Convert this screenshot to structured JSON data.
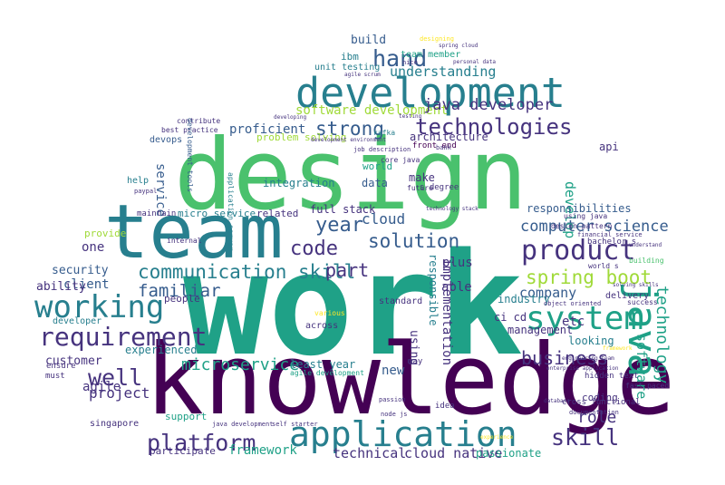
{
  "colors": {
    "background": "#ffffff",
    "palette": [
      "#440154",
      "#46337e",
      "#365c8d",
      "#277f8e",
      "#1fa187",
      "#4ac16d",
      "#a0da39",
      "#fde725"
    ]
  },
  "words": [
    {
      "t": "work",
      "c": "#1fa187"
    },
    {
      "t": "design",
      "c": "#4ac16d"
    },
    {
      "t": "knowledge",
      "c": "#440154"
    },
    {
      "t": "team",
      "c": "#277f8e"
    },
    {
      "t": "development",
      "c": "#277f8e"
    },
    {
      "t": "application",
      "c": "#277f8e"
    },
    {
      "t": "java",
      "c": "#1fa187"
    },
    {
      "t": "working",
      "c": "#277f8e"
    },
    {
      "t": "system",
      "c": "#1fa187"
    },
    {
      "t": "requirement",
      "c": "#46337e"
    },
    {
      "t": "technologies",
      "c": "#46337e"
    },
    {
      "t": "product",
      "c": "#46337e"
    },
    {
      "t": "communication skill",
      "c": "#277f8e"
    },
    {
      "t": "platform",
      "c": "#46337e"
    },
    {
      "t": "spring boot",
      "c": "#a0da39"
    },
    {
      "t": "skill",
      "c": "#46337e"
    },
    {
      "t": "well",
      "c": "#46337e"
    },
    {
      "t": "code",
      "c": "#46337e"
    },
    {
      "t": "solution",
      "c": "#365c8d"
    },
    {
      "t": "strong",
      "c": "#365c8d"
    },
    {
      "t": "hand",
      "c": "#365c8d"
    },
    {
      "t": "year",
      "c": "#365c8d"
    },
    {
      "t": "part",
      "c": "#46337e"
    },
    {
      "t": "business",
      "c": "#46337e"
    },
    {
      "t": "microservice",
      "c": "#1fa187"
    },
    {
      "t": "technology",
      "c": "#1fa187"
    },
    {
      "t": "software development",
      "c": "#a0da39"
    },
    {
      "t": "computer science",
      "c": "#365c8d"
    },
    {
      "t": "project",
      "c": "#46337e"
    },
    {
      "t": "familiar",
      "c": "#365c8d"
    },
    {
      "t": "java developer",
      "c": "#46337e"
    },
    {
      "t": "understanding",
      "c": "#277f8e"
    },
    {
      "t": "cloud",
      "c": "#365c8d"
    },
    {
      "t": "framework",
      "c": "#1fa187"
    },
    {
      "t": "technical",
      "c": "#46337e"
    },
    {
      "t": "cloud native",
      "c": "#46337e"
    },
    {
      "t": "software",
      "c": "#1fa187"
    },
    {
      "t": "company",
      "c": "#365c8d"
    },
    {
      "t": "role",
      "c": "#46337e"
    },
    {
      "t": "build",
      "c": "#365c8d"
    },
    {
      "t": "service",
      "c": "#365c8d"
    },
    {
      "t": "customer",
      "c": "#46337e"
    },
    {
      "t": "client",
      "c": "#365c8d"
    },
    {
      "t": "security",
      "c": "#365c8d"
    },
    {
      "t": "ability",
      "c": "#46337e"
    },
    {
      "t": "agile",
      "c": "#46337e"
    },
    {
      "t": "develop",
      "c": "#1fa187"
    },
    {
      "t": "implementation",
      "c": "#46337e"
    },
    {
      "t": "responsibilities",
      "c": "#365c8d"
    },
    {
      "t": "full stack",
      "c": "#46337e"
    },
    {
      "t": "integration",
      "c": "#277f8e"
    },
    {
      "t": "proficient",
      "c": "#365c8d"
    },
    {
      "t": "problem solving",
      "c": "#a0da39"
    },
    {
      "t": "architecture",
      "c": "#46337e"
    },
    {
      "t": "front end",
      "c": "#440154"
    },
    {
      "t": "experienced",
      "c": "#277f8e"
    },
    {
      "t": "unit testing",
      "c": "#277f8e"
    },
    {
      "t": "team member",
      "c": "#1fa187"
    },
    {
      "t": "ibm",
      "c": "#277f8e"
    },
    {
      "t": "plus",
      "c": "#46337e"
    },
    {
      "t": "able",
      "c": "#46337e"
    },
    {
      "t": "looking",
      "c": "#277f8e"
    },
    {
      "t": "management",
      "c": "#46337e"
    },
    {
      "t": "etc",
      "c": "#46337e"
    },
    {
      "t": "industry",
      "c": "#277f8e"
    },
    {
      "t": "new",
      "c": "#365c8d"
    },
    {
      "t": "standard",
      "c": "#46337e"
    },
    {
      "t": "using",
      "c": "#46337e"
    },
    {
      "t": "responsible",
      "c": "#277f8e"
    },
    {
      "t": "one",
      "c": "#46337e"
    },
    {
      "t": "provide",
      "c": "#a0da39"
    },
    {
      "t": "developer",
      "c": "#277f8e"
    },
    {
      "t": "people",
      "c": "#46337e"
    },
    {
      "t": "related",
      "c": "#46337e"
    },
    {
      "t": "micro service",
      "c": "#277f8e"
    },
    {
      "t": "least year",
      "c": "#277f8e"
    },
    {
      "t": "agile development",
      "c": "#1fa187"
    },
    {
      "t": "data",
      "c": "#365c8d"
    },
    {
      "t": "make",
      "c": "#46337e"
    },
    {
      "t": "world",
      "c": "#1fa187"
    },
    {
      "t": "coding",
      "c": "#46337e"
    },
    {
      "t": "delivery",
      "c": "#46337e"
    },
    {
      "t": "support",
      "c": "#1fa187"
    },
    {
      "t": "singapore",
      "c": "#46337e"
    },
    {
      "t": "participate",
      "c": "#46337e"
    },
    {
      "t": "passionate",
      "c": "#1fa187"
    },
    {
      "t": "devops",
      "c": "#365c8d"
    },
    {
      "t": "best practice",
      "c": "#46337e"
    },
    {
      "t": "contribute",
      "c": "#46337e"
    },
    {
      "t": "maintain",
      "c": "#46337e"
    },
    {
      "t": "help",
      "c": "#277f8e"
    },
    {
      "t": "ensure",
      "c": "#46337e"
    },
    {
      "t": "must",
      "c": "#46337e"
    },
    {
      "t": "core java",
      "c": "#46337e"
    },
    {
      "t": "ci cd",
      "c": "#46337e"
    },
    {
      "t": "kafka",
      "c": "#277f8e"
    },
    {
      "t": "api",
      "c": "#46337e"
    },
    {
      "t": "cross functional",
      "c": "#46337e"
    },
    {
      "t": "fast paced",
      "c": "#46337e"
    },
    {
      "t": "design pattern",
      "c": "#46337e"
    },
    {
      "t": "using java",
      "c": "#46337e"
    },
    {
      "t": "application server",
      "c": "#277f8e"
    },
    {
      "t": "development tools",
      "c": "#365c8d"
    },
    {
      "t": "internal",
      "c": "#46337e"
    },
    {
      "t": "bachelor s",
      "c": "#46337e"
    },
    {
      "t": "world s",
      "c": "#46337e"
    },
    {
      "t": "documentation",
      "c": "#46337e"
    },
    {
      "t": "hidden text",
      "c": "#46337e"
    },
    {
      "t": "java development",
      "c": "#46337e"
    },
    {
      "t": "self starter",
      "c": "#46337e"
    },
    {
      "t": "idea",
      "c": "#46337e"
    },
    {
      "t": "may",
      "c": "#46337e"
    },
    {
      "t": "across",
      "c": "#46337e"
    },
    {
      "t": "job description",
      "c": "#46337e"
    },
    {
      "t": "development environment",
      "c": "#46337e"
    },
    {
      "t": "designing",
      "c": "#fde725"
    },
    {
      "t": "nice",
      "c": "#46337e"
    },
    {
      "t": "s degree",
      "c": "#46337e"
    },
    {
      "t": "financial service",
      "c": "#46337e"
    },
    {
      "t": "building",
      "c": "#4ac16d"
    },
    {
      "t": "object oriented",
      "c": "#46337e"
    },
    {
      "t": "enterprise application",
      "c": "#46337e"
    },
    {
      "t": "solving skills",
      "c": "#46337e"
    },
    {
      "t": "success",
      "c": "#46337e"
    },
    {
      "t": "various",
      "c": "#fde725"
    },
    {
      "t": "future",
      "c": "#46337e"
    },
    {
      "t": "understand",
      "c": "#46337e"
    },
    {
      "t": "engineering team",
      "c": "#46337e"
    },
    {
      "t": "technology stack",
      "c": "#46337e"
    },
    {
      "t": "passion",
      "c": "#46337e"
    },
    {
      "t": "node js",
      "c": "#46337e"
    },
    {
      "t": "paypal",
      "c": "#46337e"
    },
    {
      "t": "bank",
      "c": "#46337e"
    },
    {
      "t": "developing",
      "c": "#46337e"
    },
    {
      "t": "testing",
      "c": "#46337e"
    },
    {
      "t": "agile scrum",
      "c": "#46337e"
    },
    {
      "t": "spring cloud",
      "c": "#46337e"
    },
    {
      "t": "personal data",
      "c": "#46337e"
    },
    {
      "t": "database",
      "c": "#46337e"
    },
    {
      "t": "framework",
      "c": "#fde725"
    },
    {
      "t": "experience",
      "c": "#fde725"
    }
  ]
}
